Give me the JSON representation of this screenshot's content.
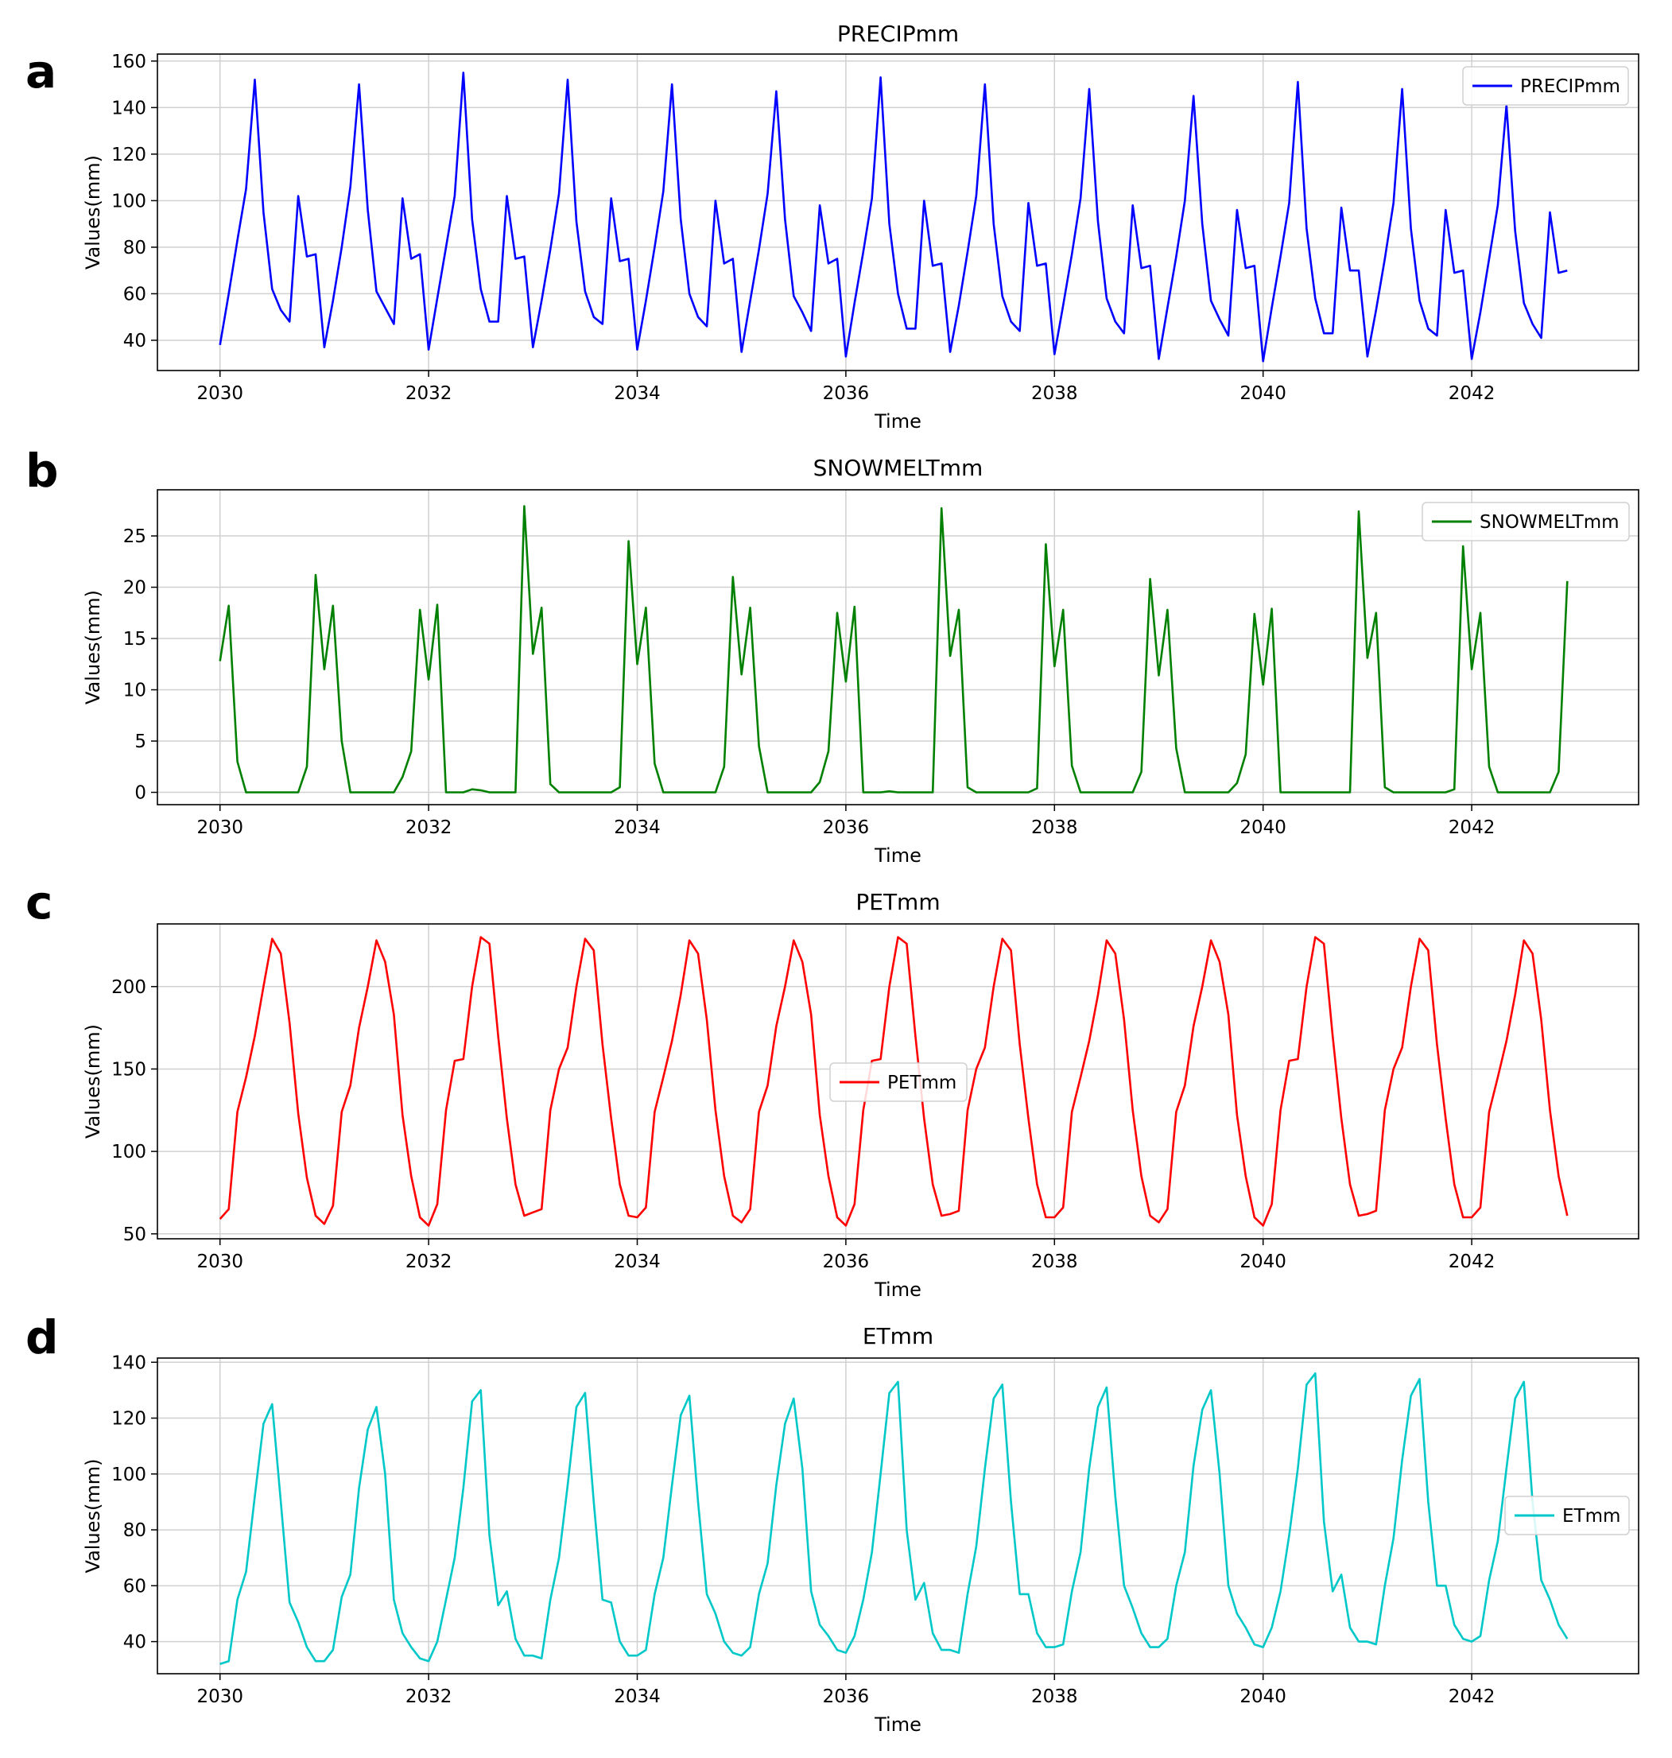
{
  "figure": {
    "chart_count": 4
  },
  "chart_data": [
    {
      "type": "line",
      "panel_label": "a",
      "title": "PRECIPmm",
      "xlabel": "Time",
      "ylabel": "Values(mm)",
      "xlim": [
        2029.4,
        2043.6
      ],
      "ylim": [
        27,
        163
      ],
      "xticks": [
        2030,
        2032,
        2034,
        2036,
        2038,
        2040,
        2042
      ],
      "yticks": [
        40,
        60,
        80,
        100,
        120,
        140,
        160
      ],
      "grid": true,
      "legend": {
        "position": "top-right",
        "entries": [
          "PRECIPmm"
        ]
      },
      "series": [
        {
          "name": "PRECIPmm",
          "color": "#0000ff",
          "x_start": 2030,
          "x_step": 0.0833333,
          "values": [
            38,
            60,
            83,
            105,
            152,
            95,
            62,
            53,
            48,
            102,
            76,
            77,
            37,
            57,
            80,
            106,
            150,
            96,
            61,
            54,
            47,
            101,
            75,
            77,
            36,
            58,
            80,
            102,
            155,
            92,
            62,
            48,
            48,
            102,
            75,
            76,
            37,
            57,
            79,
            103,
            152,
            91,
            61,
            50,
            47,
            101,
            74,
            75,
            36,
            57,
            80,
            104,
            150,
            92,
            60,
            50,
            46,
            100,
            73,
            75,
            35,
            57,
            79,
            103,
            147,
            92,
            59,
            52,
            44,
            98,
            73,
            75,
            33,
            56,
            78,
            101,
            153,
            90,
            60,
            45,
            45,
            100,
            72,
            73,
            35,
            55,
            78,
            102,
            150,
            90,
            59,
            48,
            44,
            99,
            72,
            73,
            34,
            55,
            77,
            101,
            148,
            91,
            58,
            48,
            43,
            98,
            71,
            72,
            32,
            54,
            76,
            100,
            145,
            90,
            57,
            49,
            42,
            96,
            71,
            72,
            31,
            54,
            76,
            99,
            151,
            88,
            58,
            43,
            43,
            97,
            70,
            70,
            33,
            53,
            75,
            99,
            148,
            88,
            57,
            45,
            42,
            96,
            69,
            70,
            32,
            52,
            75,
            98,
            141,
            87,
            56,
            47,
            41,
            95,
            69,
            70
          ]
        }
      ]
    },
    {
      "type": "line",
      "panel_label": "b",
      "title": "SNOWMELTmm",
      "xlabel": "Time",
      "ylabel": "Values(mm)",
      "xlim": [
        2029.4,
        2043.6
      ],
      "ylim": [
        -1.2,
        29.5
      ],
      "xticks": [
        2030,
        2032,
        2034,
        2036,
        2038,
        2040,
        2042
      ],
      "yticks": [
        0,
        5,
        10,
        15,
        20,
        25
      ],
      "grid": true,
      "legend": {
        "position": "top-right",
        "entries": [
          "SNOWMELTmm"
        ]
      },
      "series": [
        {
          "name": "SNOWMELTmm",
          "color": "#008000",
          "x_start": 2030,
          "x_step": 0.0833333,
          "values": [
            12.8,
            18.2,
            3.0,
            0,
            0,
            0,
            0,
            0,
            0,
            0,
            2.5,
            21.2,
            12.0,
            18.2,
            5.0,
            0,
            0,
            0,
            0,
            0,
            0,
            1.5,
            4.0,
            17.8,
            11.0,
            18.3,
            0,
            0,
            0,
            0.3,
            0.2,
            0,
            0,
            0,
            0,
            27.9,
            13.5,
            18.0,
            0.8,
            0,
            0,
            0,
            0,
            0,
            0,
            0,
            0.5,
            24.5,
            12.5,
            18.0,
            2.8,
            0,
            0,
            0,
            0,
            0,
            0,
            0,
            2.5,
            21.0,
            11.5,
            18.0,
            4.5,
            0,
            0,
            0,
            0,
            0,
            0,
            1.0,
            4.0,
            17.5,
            10.8,
            18.1,
            0,
            0,
            0,
            0.1,
            0,
            0,
            0,
            0,
            0,
            27.7,
            13.3,
            17.8,
            0.5,
            0,
            0,
            0,
            0,
            0,
            0,
            0,
            0.4,
            24.2,
            12.3,
            17.8,
            2.6,
            0,
            0,
            0,
            0,
            0,
            0,
            0,
            2.0,
            20.8,
            11.4,
            17.8,
            4.3,
            0,
            0,
            0,
            0,
            0,
            0,
            0.9,
            3.7,
            17.4,
            10.5,
            17.9,
            0,
            0,
            0,
            0,
            0,
            0,
            0,
            0,
            0,
            27.4,
            13.1,
            17.5,
            0.5,
            0,
            0,
            0,
            0,
            0,
            0,
            0,
            0.3,
            24.0,
            12.0,
            17.5,
            2.5,
            0,
            0,
            0,
            0,
            0,
            0,
            0,
            2.0,
            20.6
          ]
        }
      ]
    },
    {
      "type": "line",
      "panel_label": "c",
      "title": "PETmm",
      "xlabel": "Time",
      "ylabel": "Values(mm)",
      "xlim": [
        2029.4,
        2043.6
      ],
      "ylim": [
        47,
        238
      ],
      "xticks": [
        2030,
        2032,
        2034,
        2036,
        2038,
        2040,
        2042
      ],
      "yticks": [
        50,
        100,
        150,
        200
      ],
      "grid": true,
      "legend": {
        "position": "center",
        "entries": [
          "PETmm"
        ]
      },
      "series": [
        {
          "name": "PETmm",
          "color": "#ff0000",
          "x_start": 2030,
          "x_step": 0.0833333,
          "values": [
            59,
            65,
            124,
            145,
            170,
            200,
            229,
            220,
            178,
            123,
            84,
            61,
            56,
            67,
            124,
            140,
            175,
            200,
            228,
            215,
            183,
            122,
            85,
            60,
            55,
            68,
            125,
            155,
            156,
            200,
            230,
            226,
            170,
            120,
            80,
            61,
            63,
            65,
            125,
            150,
            163,
            200,
            229,
            222,
            165,
            120,
            80,
            61,
            60,
            66,
            124,
            145,
            167,
            195,
            228,
            220,
            180,
            125,
            85,
            61,
            57,
            65,
            124,
            140,
            176,
            200,
            228,
            215,
            183,
            122,
            85,
            60,
            55,
            68,
            125,
            155,
            156,
            200,
            230,
            226,
            170,
            120,
            80,
            61,
            62,
            64,
            125,
            150,
            163,
            200,
            229,
            222,
            165,
            120,
            80,
            60,
            60,
            66,
            124,
            145,
            167,
            195,
            228,
            220,
            180,
            125,
            85,
            61,
            57,
            65,
            124,
            140,
            176,
            200,
            228,
            215,
            183,
            122,
            85,
            60,
            55,
            68,
            125,
            155,
            156,
            200,
            230,
            226,
            170,
            120,
            80,
            61,
            62,
            64,
            125,
            150,
            163,
            200,
            229,
            222,
            165,
            120,
            80,
            60,
            60,
            66,
            124,
            145,
            167,
            195,
            228,
            220,
            180,
            125,
            85,
            61
          ]
        }
      ]
    },
    {
      "type": "line",
      "panel_label": "d",
      "title": "ETmm",
      "xlabel": "Time",
      "ylabel": "Values(mm)",
      "xlim": [
        2029.4,
        2043.6
      ],
      "ylim": [
        28.5,
        141.5
      ],
      "xticks": [
        2030,
        2032,
        2034,
        2036,
        2038,
        2040,
        2042
      ],
      "yticks": [
        40,
        60,
        80,
        100,
        120,
        140
      ],
      "grid": true,
      "legend": {
        "position": "center-right",
        "entries": [
          "ETmm"
        ]
      },
      "series": [
        {
          "name": "ETmm",
          "color": "#00c8c8",
          "x_start": 2030,
          "x_step": 0.0833333,
          "values": [
            32,
            33,
            55,
            65,
            92,
            118,
            125,
            90,
            54,
            47,
            38,
            33,
            33,
            37,
            56,
            64,
            95,
            116,
            124,
            100,
            55,
            43,
            38,
            34,
            33,
            40,
            55,
            70,
            95,
            126,
            130,
            78,
            53,
            58,
            41,
            35,
            35,
            34,
            55,
            70,
            96,
            124,
            129,
            90,
            55,
            54,
            40,
            35,
            35,
            37,
            57,
            70,
            96,
            121,
            128,
            90,
            57,
            50,
            40,
            36,
            35,
            38,
            57,
            68,
            96,
            118,
            127,
            102,
            58,
            46,
            42,
            37,
            36,
            42,
            55,
            72,
            100,
            129,
            133,
            80,
            55,
            61,
            43,
            37,
            37,
            36,
            57,
            74,
            102,
            127,
            132,
            90,
            57,
            57,
            43,
            38,
            38,
            39,
            58,
            72,
            102,
            124,
            131,
            92,
            60,
            52,
            43,
            38,
            38,
            41,
            60,
            72,
            103,
            123,
            130,
            100,
            60,
            50,
            45,
            39,
            38,
            45,
            58,
            78,
            102,
            132,
            136,
            83,
            58,
            64,
            45,
            40,
            40,
            39,
            60,
            77,
            105,
            128,
            134,
            90,
            60,
            60,
            46,
            41,
            40,
            42,
            62,
            76,
            102,
            127,
            133,
            90,
            62,
            55,
            46,
            41
          ]
        }
      ]
    }
  ]
}
